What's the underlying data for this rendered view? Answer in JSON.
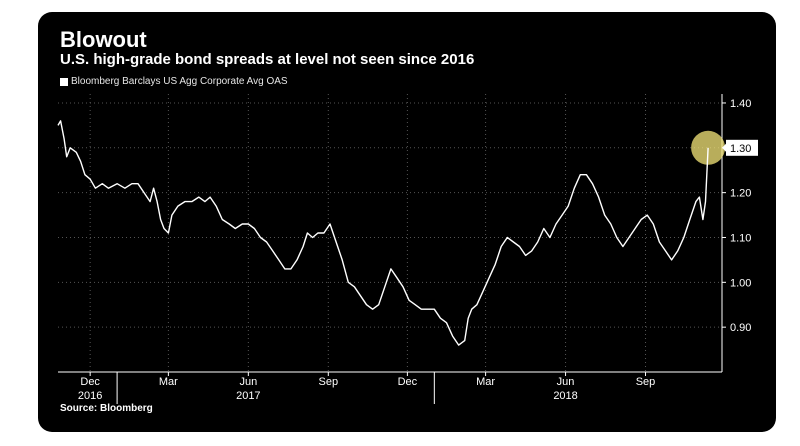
{
  "header": {
    "title": "Blowout",
    "subtitle": "U.S. high-grade bond spreads at level not seen since 2016"
  },
  "legend": {
    "label": "Bloomberg Barclays US Agg Corporate Avg OAS",
    "color": "#ffffff"
  },
  "source": "Source: Bloomberg",
  "colors": {
    "background": "#000000",
    "line": "#ffffff",
    "highlight": "#f5e77a",
    "grid": "#555555"
  },
  "chart_data": {
    "type": "line",
    "title": "Blowout",
    "subtitle": "U.S. high-grade bond spreads at level not seen since 2016",
    "ylim": [
      0.8,
      1.42
    ],
    "yticks": [
      0.9,
      1.0,
      1.1,
      1.2,
      1.3,
      1.4
    ],
    "ytick_labels": [
      "0.90",
      "1.00",
      "1.10",
      "1.20",
      "1.30",
      "1.40"
    ],
    "xlim": [
      "2016-10-25",
      "2018-11-28"
    ],
    "xticks": [
      {
        "date": "2016-12-01",
        "label": "Dec",
        "year": "2016"
      },
      {
        "date": "2017-03-01",
        "label": "Mar",
        "year": ""
      },
      {
        "date": "2017-06-01",
        "label": "Jun",
        "year": "2017"
      },
      {
        "date": "2017-09-01",
        "label": "Sep",
        "year": ""
      },
      {
        "date": "2017-12-01",
        "label": "Dec",
        "year": ""
      },
      {
        "date": "2018-03-01",
        "label": "Mar",
        "year": ""
      },
      {
        "date": "2018-06-01",
        "label": "Jun",
        "year": "2018"
      },
      {
        "date": "2018-09-01",
        "label": "Sep",
        "year": ""
      }
    ],
    "year_separators": [
      "2017-01-01",
      "2018-01-01"
    ],
    "grid": true,
    "legend_position": "top-left",
    "last_value_label": "1.30",
    "highlight_point": {
      "date": "2018-11-12",
      "value": 1.3
    },
    "series": [
      {
        "name": "Bloomberg Barclays US Agg Corporate Avg OAS",
        "points": [
          [
            "2016-10-25",
            1.35
          ],
          [
            "2016-10-28",
            1.36
          ],
          [
            "2016-11-01",
            1.32
          ],
          [
            "2016-11-04",
            1.28
          ],
          [
            "2016-11-08",
            1.3
          ],
          [
            "2016-11-15",
            1.29
          ],
          [
            "2016-11-20",
            1.27
          ],
          [
            "2016-11-25",
            1.24
          ],
          [
            "2016-12-01",
            1.23
          ],
          [
            "2016-12-07",
            1.21
          ],
          [
            "2016-12-15",
            1.22
          ],
          [
            "2016-12-22",
            1.21
          ],
          [
            "2017-01-01",
            1.22
          ],
          [
            "2017-01-10",
            1.21
          ],
          [
            "2017-01-18",
            1.22
          ],
          [
            "2017-01-25",
            1.22
          ],
          [
            "2017-02-01",
            1.2
          ],
          [
            "2017-02-08",
            1.18
          ],
          [
            "2017-02-12",
            1.21
          ],
          [
            "2017-02-16",
            1.18
          ],
          [
            "2017-02-20",
            1.14
          ],
          [
            "2017-02-24",
            1.12
          ],
          [
            "2017-03-01",
            1.11
          ],
          [
            "2017-03-05",
            1.15
          ],
          [
            "2017-03-12",
            1.17
          ],
          [
            "2017-03-20",
            1.18
          ],
          [
            "2017-03-28",
            1.18
          ],
          [
            "2017-04-05",
            1.19
          ],
          [
            "2017-04-12",
            1.18
          ],
          [
            "2017-04-18",
            1.19
          ],
          [
            "2017-04-25",
            1.17
          ],
          [
            "2017-05-02",
            1.14
          ],
          [
            "2017-05-10",
            1.13
          ],
          [
            "2017-05-17",
            1.12
          ],
          [
            "2017-05-25",
            1.13
          ],
          [
            "2017-06-01",
            1.13
          ],
          [
            "2017-06-08",
            1.12
          ],
          [
            "2017-06-15",
            1.1
          ],
          [
            "2017-06-22",
            1.09
          ],
          [
            "2017-06-29",
            1.07
          ],
          [
            "2017-07-06",
            1.05
          ],
          [
            "2017-07-13",
            1.03
          ],
          [
            "2017-07-20",
            1.03
          ],
          [
            "2017-07-27",
            1.05
          ],
          [
            "2017-08-03",
            1.08
          ],
          [
            "2017-08-08",
            1.11
          ],
          [
            "2017-08-14",
            1.1
          ],
          [
            "2017-08-20",
            1.11
          ],
          [
            "2017-08-27",
            1.11
          ],
          [
            "2017-09-03",
            1.13
          ],
          [
            "2017-09-10",
            1.09
          ],
          [
            "2017-09-17",
            1.05
          ],
          [
            "2017-09-24",
            1.0
          ],
          [
            "2017-10-01",
            0.99
          ],
          [
            "2017-10-08",
            0.97
          ],
          [
            "2017-10-15",
            0.95
          ],
          [
            "2017-10-22",
            0.94
          ],
          [
            "2017-10-29",
            0.95
          ],
          [
            "2017-11-05",
            0.99
          ],
          [
            "2017-11-12",
            1.03
          ],
          [
            "2017-11-19",
            1.01
          ],
          [
            "2017-11-26",
            0.99
          ],
          [
            "2017-12-03",
            0.96
          ],
          [
            "2017-12-10",
            0.95
          ],
          [
            "2017-12-17",
            0.94
          ],
          [
            "2017-12-24",
            0.94
          ],
          [
            "2018-01-01",
            0.94
          ],
          [
            "2018-01-08",
            0.92
          ],
          [
            "2018-01-15",
            0.91
          ],
          [
            "2018-01-22",
            0.88
          ],
          [
            "2018-01-29",
            0.86
          ],
          [
            "2018-02-05",
            0.87
          ],
          [
            "2018-02-09",
            0.92
          ],
          [
            "2018-02-13",
            0.94
          ],
          [
            "2018-02-19",
            0.95
          ],
          [
            "2018-02-26",
            0.98
          ],
          [
            "2018-03-05",
            1.01
          ],
          [
            "2018-03-12",
            1.04
          ],
          [
            "2018-03-19",
            1.08
          ],
          [
            "2018-03-26",
            1.1
          ],
          [
            "2018-04-02",
            1.09
          ],
          [
            "2018-04-09",
            1.08
          ],
          [
            "2018-04-16",
            1.06
          ],
          [
            "2018-04-23",
            1.07
          ],
          [
            "2018-04-30",
            1.09
          ],
          [
            "2018-05-07",
            1.12
          ],
          [
            "2018-05-14",
            1.1
          ],
          [
            "2018-05-21",
            1.13
          ],
          [
            "2018-05-28",
            1.15
          ],
          [
            "2018-06-04",
            1.17
          ],
          [
            "2018-06-11",
            1.21
          ],
          [
            "2018-06-18",
            1.24
          ],
          [
            "2018-06-25",
            1.24
          ],
          [
            "2018-07-02",
            1.22
          ],
          [
            "2018-07-09",
            1.19
          ],
          [
            "2018-07-16",
            1.15
          ],
          [
            "2018-07-23",
            1.13
          ],
          [
            "2018-07-30",
            1.1
          ],
          [
            "2018-08-06",
            1.08
          ],
          [
            "2018-08-13",
            1.1
          ],
          [
            "2018-08-20",
            1.12
          ],
          [
            "2018-08-27",
            1.14
          ],
          [
            "2018-09-03",
            1.15
          ],
          [
            "2018-09-10",
            1.13
          ],
          [
            "2018-09-17",
            1.09
          ],
          [
            "2018-09-24",
            1.07
          ],
          [
            "2018-10-01",
            1.05
          ],
          [
            "2018-10-08",
            1.07
          ],
          [
            "2018-10-15",
            1.1
          ],
          [
            "2018-10-22",
            1.14
          ],
          [
            "2018-10-29",
            1.18
          ],
          [
            "2018-11-02",
            1.19
          ],
          [
            "2018-11-06",
            1.14
          ],
          [
            "2018-11-09",
            1.18
          ],
          [
            "2018-11-12",
            1.3
          ]
        ]
      }
    ]
  }
}
